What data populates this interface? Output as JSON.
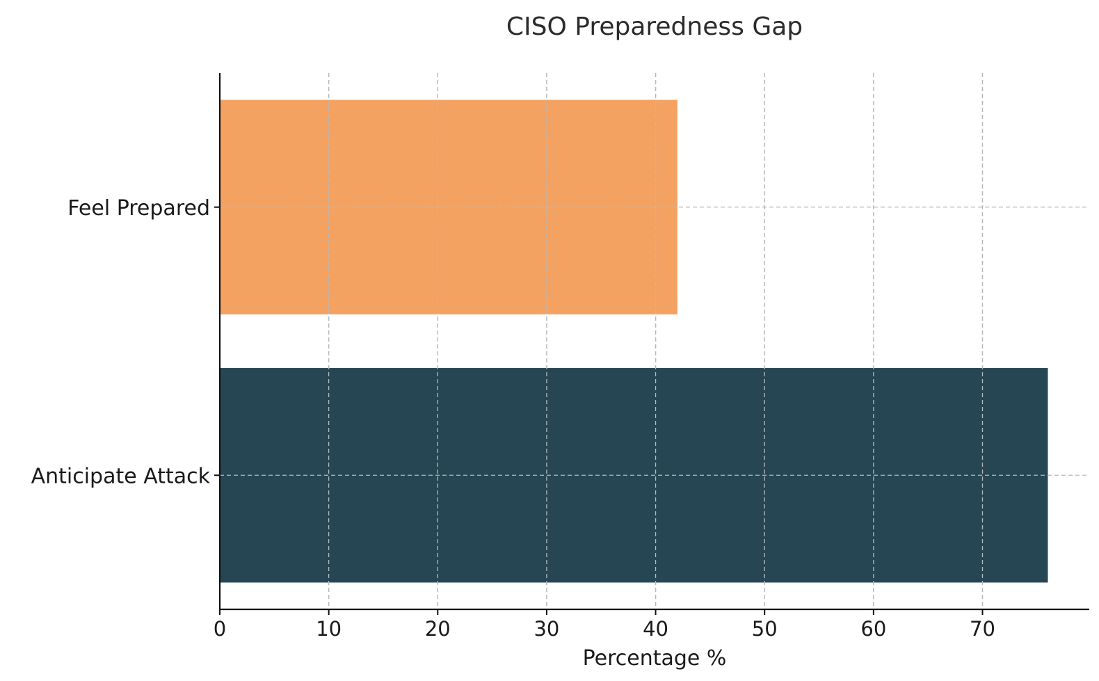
{
  "chart_data": {
    "type": "bar",
    "orientation": "horizontal",
    "title": "CISO Preparedness Gap",
    "xlabel": "Percentage %",
    "ylabel": "",
    "categories": [
      "Anticipate Attack",
      "Feel Prepared"
    ],
    "values": [
      76,
      42
    ],
    "colors": [
      "#264653",
      "#F4A261"
    ],
    "xlim": [
      0,
      79.8
    ],
    "xticks": [
      0,
      10,
      20,
      30,
      40,
      50,
      60,
      70
    ],
    "grid": true,
    "grid_style": "dashed",
    "legend": "none"
  }
}
